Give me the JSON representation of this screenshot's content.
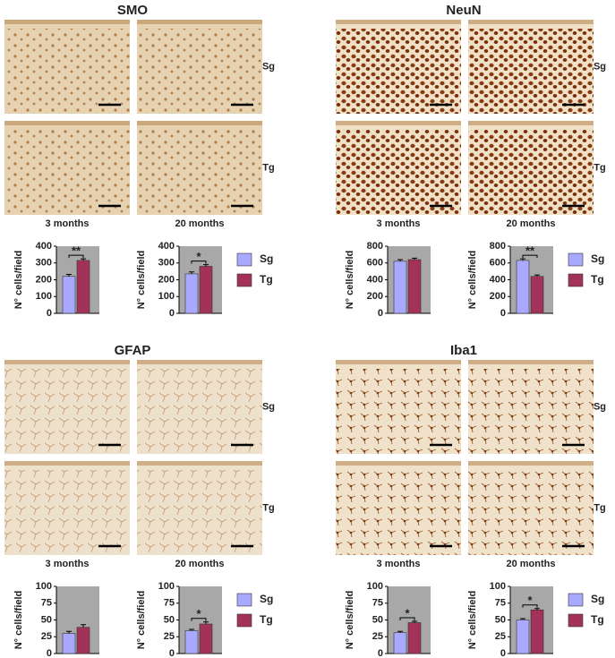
{
  "panels": [
    {
      "title": "SMO",
      "rows": [
        "Sg",
        "Tg"
      ],
      "columns": [
        "3 months",
        "20 months"
      ]
    },
    {
      "title": "NeuN",
      "rows": [
        "Sg",
        "Tg"
      ],
      "columns": [
        "3 months",
        "20 months"
      ]
    },
    {
      "title": "GFAP",
      "rows": [
        "Sg",
        "Tg"
      ],
      "columns": [
        "3 months",
        "20 months"
      ]
    },
    {
      "title": "Iba1",
      "rows": [
        "Sg",
        "Tg"
      ],
      "columns": [
        "3 months",
        "20 months"
      ]
    }
  ],
  "chart_data": [
    {
      "type": "bar",
      "ylabel": "N° cells/field",
      "categories": [
        null,
        null
      ],
      "ylim": [
        0,
        400
      ],
      "yticks": [
        0,
        100,
        200,
        300,
        400
      ],
      "series": [
        {
          "name": "Sg",
          "color": "#a9a9ff",
          "values": [
            220,
            235
          ],
          "errors": [
            12,
            12
          ]
        },
        {
          "name": "Tg",
          "color": "#a3325a",
          "values": [
            315,
            280
          ],
          "errors": [
            10,
            10
          ]
        }
      ],
      "significance": [
        "**",
        "*"
      ]
    },
    {
      "type": "bar",
      "ylabel": "N° cells/field",
      "categories": [
        null,
        null
      ],
      "ylim": [
        0,
        800
      ],
      "yticks": [
        0,
        200,
        400,
        600,
        800
      ],
      "series": [
        {
          "name": "Sg",
          "color": "#a9a9ff",
          "values": [
            620,
            630
          ],
          "errors": [
            20,
            20
          ]
        },
        {
          "name": "Tg",
          "color": "#a3325a",
          "values": [
            640,
            440
          ],
          "errors": [
            18,
            18
          ]
        }
      ],
      "significance": [
        null,
        "**"
      ]
    },
    {
      "type": "bar",
      "ylabel": "N° cells/field",
      "categories": [
        null,
        null
      ],
      "ylim": [
        0,
        100
      ],
      "yticks": [
        0,
        25,
        50,
        75,
        100
      ],
      "series": [
        {
          "name": "Sg",
          "color": "#a9a9ff",
          "values": [
            30,
            34
          ],
          "errors": [
            3,
            2
          ]
        },
        {
          "name": "Tg",
          "color": "#a3325a",
          "values": [
            39,
            44
          ],
          "errors": [
            4,
            3
          ]
        }
      ],
      "significance": [
        null,
        "*"
      ]
    },
    {
      "type": "bar",
      "ylabel": "N° cells/field",
      "categories": [
        null,
        null
      ],
      "ylim": [
        0,
        100
      ],
      "yticks": [
        0,
        25,
        50,
        75,
        100
      ],
      "series": [
        {
          "name": "Sg",
          "color": "#a9a9ff",
          "values": [
            31,
            50
          ],
          "errors": [
            2,
            2
          ]
        },
        {
          "name": "Tg",
          "color": "#a3325a",
          "values": [
            46,
            65
          ],
          "errors": [
            2,
            2
          ]
        }
      ],
      "significance": [
        "*",
        "*"
      ]
    }
  ]
}
